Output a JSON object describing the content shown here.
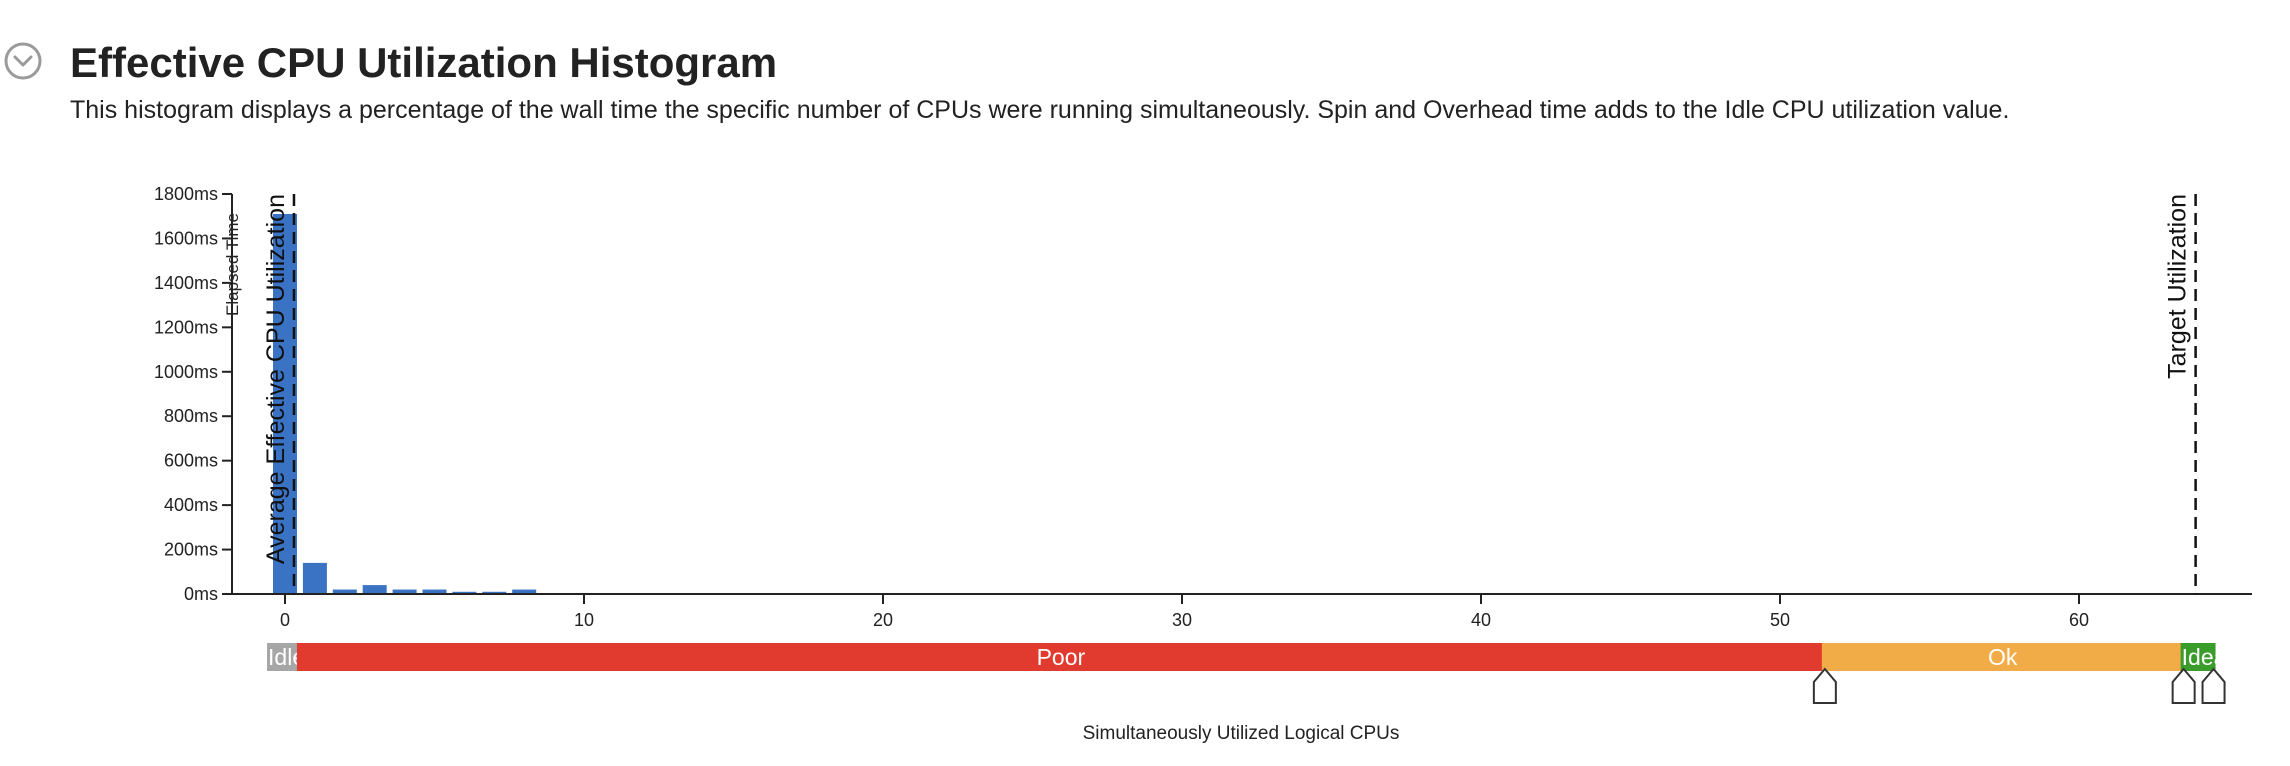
{
  "section": {
    "title": "Effective CPU Utilization Histogram",
    "description": "This histogram displays a percentage of the wall time the specific number of CPUs were running simultaneously. Spin and Overhead time adds to the Idle CPU utilization value."
  },
  "icons": {
    "collapse": "chevron-down-circle-icon"
  },
  "colors": {
    "bar": "#3a73c3",
    "idle": "#a6a6a6",
    "poor": "#e13b2f",
    "ok": "#f2ac47",
    "ideal": "#3a9d2b",
    "text": "#222222"
  },
  "chart_data": {
    "type": "bar",
    "xlabel": "Simultaneously Utilized Logical CPUs",
    "ylabel": "Elapsed Time",
    "x_ticks": [
      0,
      10,
      20,
      30,
      40,
      50,
      60
    ],
    "y_ticks": [
      0,
      200,
      400,
      600,
      800,
      1000,
      1200,
      1400,
      1600,
      1800
    ],
    "y_unit": "ms",
    "xlim": [
      -1.7,
      65.3
    ],
    "ylim": [
      0,
      1800
    ],
    "x": [
      0,
      1,
      2,
      3,
      4,
      5,
      6,
      7,
      8
    ],
    "values": [
      1710,
      140,
      20,
      40,
      20,
      20,
      10,
      10,
      20
    ],
    "markers": [
      {
        "name": "average",
        "label": "Average Effective CPU Utilization",
        "x": 0.3
      },
      {
        "name": "target",
        "label": "Target Utilization",
        "x": 63.9
      }
    ],
    "ranges": [
      {
        "name": "idle",
        "label": "Idle",
        "from": -0.5,
        "to": 0.5
      },
      {
        "name": "poor",
        "label": "Poor",
        "from": 0.5,
        "to": 51.5
      },
      {
        "name": "ok",
        "label": "Ok",
        "from": 51.5,
        "to": 63.5
      },
      {
        "name": "ideal",
        "label": "Ideal",
        "from": 63.5,
        "to": 64.5
      }
    ],
    "range_handles": [
      51.5,
      63.5,
      64.5
    ]
  }
}
